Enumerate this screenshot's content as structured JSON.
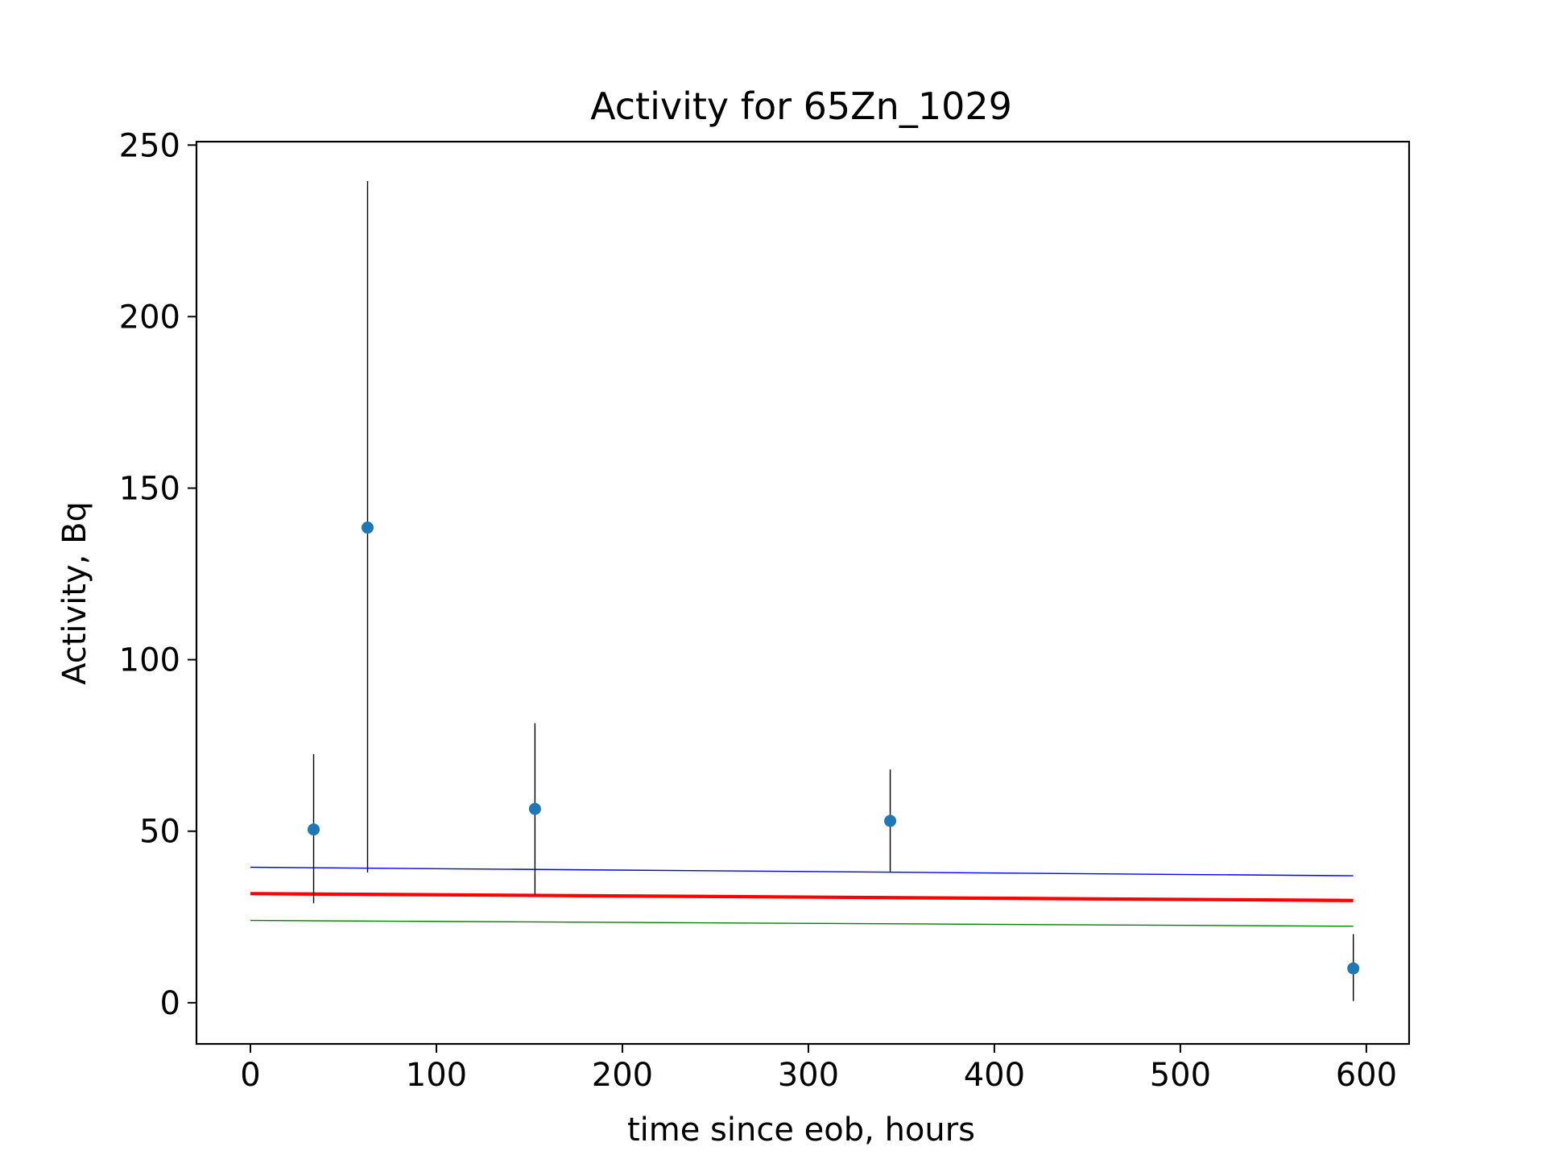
{
  "chart_data": {
    "type": "scatter",
    "title": "Activity for 65Zn_1029",
    "xlabel": "time since eob, hours",
    "ylabel": "Activity, Bq",
    "xlim": [
      -29,
      623
    ],
    "ylim": [
      -12,
      251
    ],
    "xticks": [
      0,
      100,
      200,
      300,
      400,
      500,
      600
    ],
    "yticks": [
      0,
      50,
      100,
      150,
      200,
      250
    ],
    "grid": false,
    "legend": "none",
    "points": [
      {
        "x": 34,
        "y": 50.5,
        "err_low": 29.0,
        "err_high": 72.5
      },
      {
        "x": 63,
        "y": 138.5,
        "err_low": 38.0,
        "err_high": 239.5
      },
      {
        "x": 153,
        "y": 56.5,
        "err_low": 31.5,
        "err_high": 81.5
      },
      {
        "x": 344,
        "y": 53.0,
        "err_low": 38.0,
        "err_high": 68.0
      },
      {
        "x": 593,
        "y": 10.0,
        "err_low": 0.5,
        "err_high": 20.0
      }
    ],
    "lines": [
      {
        "x": [
          0,
          593
        ],
        "y": [
          39.5,
          37.0
        ],
        "color": "#0000ff",
        "width": 1.4
      },
      {
        "x": [
          0,
          593
        ],
        "y": [
          31.8,
          29.8
        ],
        "color": "#ff0000",
        "width": 4.2
      },
      {
        "x": [
          0,
          593
        ],
        "y": [
          24.0,
          22.3
        ],
        "color": "#008000",
        "width": 1.4
      }
    ],
    "colors": {
      "points": "#1f77b4",
      "errorbars": "#000000",
      "axes": "#000000"
    }
  }
}
